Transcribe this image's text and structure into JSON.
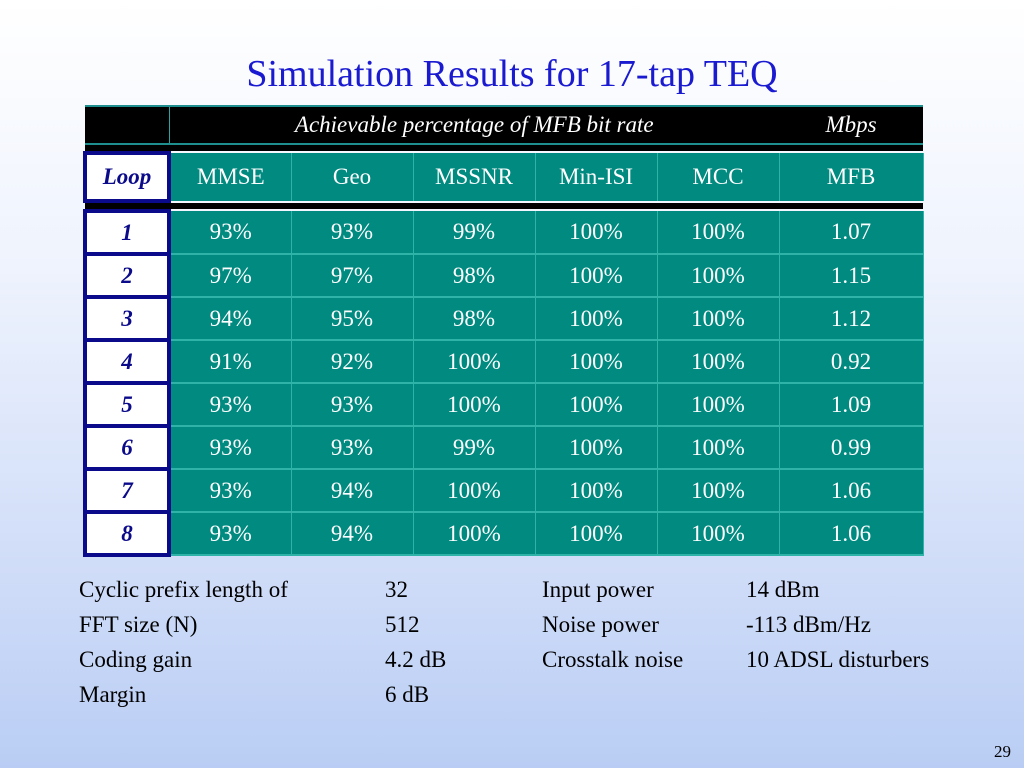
{
  "title": "Simulation Results for 17-tap TEQ",
  "table": {
    "super_header": {
      "span_label": "Achievable percentage of MFB bit rate",
      "last_label": "Mbps"
    },
    "columns": [
      "Loop",
      "MMSE",
      "Geo",
      "MSSNR",
      "Min-ISI",
      "MCC",
      "MFB"
    ],
    "rows": [
      [
        "1",
        "93%",
        "93%",
        "99%",
        "100%",
        "100%",
        "1.07"
      ],
      [
        "2",
        "97%",
        "97%",
        "98%",
        "100%",
        "100%",
        "1.15"
      ],
      [
        "3",
        "94%",
        "95%",
        "98%",
        "100%",
        "100%",
        "1.12"
      ],
      [
        "4",
        "91%",
        "92%",
        "100%",
        "100%",
        "100%",
        "0.92"
      ],
      [
        "5",
        "93%",
        "93%",
        "100%",
        "100%",
        "100%",
        "1.09"
      ],
      [
        "6",
        "93%",
        "93%",
        "99%",
        "100%",
        "100%",
        "0.99"
      ],
      [
        "7",
        "93%",
        "94%",
        "100%",
        "100%",
        "100%",
        "1.06"
      ],
      [
        "8",
        "93%",
        "94%",
        "100%",
        "100%",
        "100%",
        "1.06"
      ]
    ]
  },
  "parameters": [
    {
      "label": "Cyclic prefix length of",
      "value": "32",
      "label2": "Input power",
      "value2": "14 dBm"
    },
    {
      "label": "FFT size (N)",
      "value": "512",
      "label2": "Noise power",
      "value2": "-113 dBm/Hz"
    },
    {
      "label": "Coding gain",
      "value": "4.2 dB",
      "label2": "Crosstalk noise",
      "value2": "10 ADSL disturbers"
    },
    {
      "label": "Margin",
      "value": "6 dB",
      "label2": "",
      "value2": ""
    }
  ],
  "page_number": "29"
}
